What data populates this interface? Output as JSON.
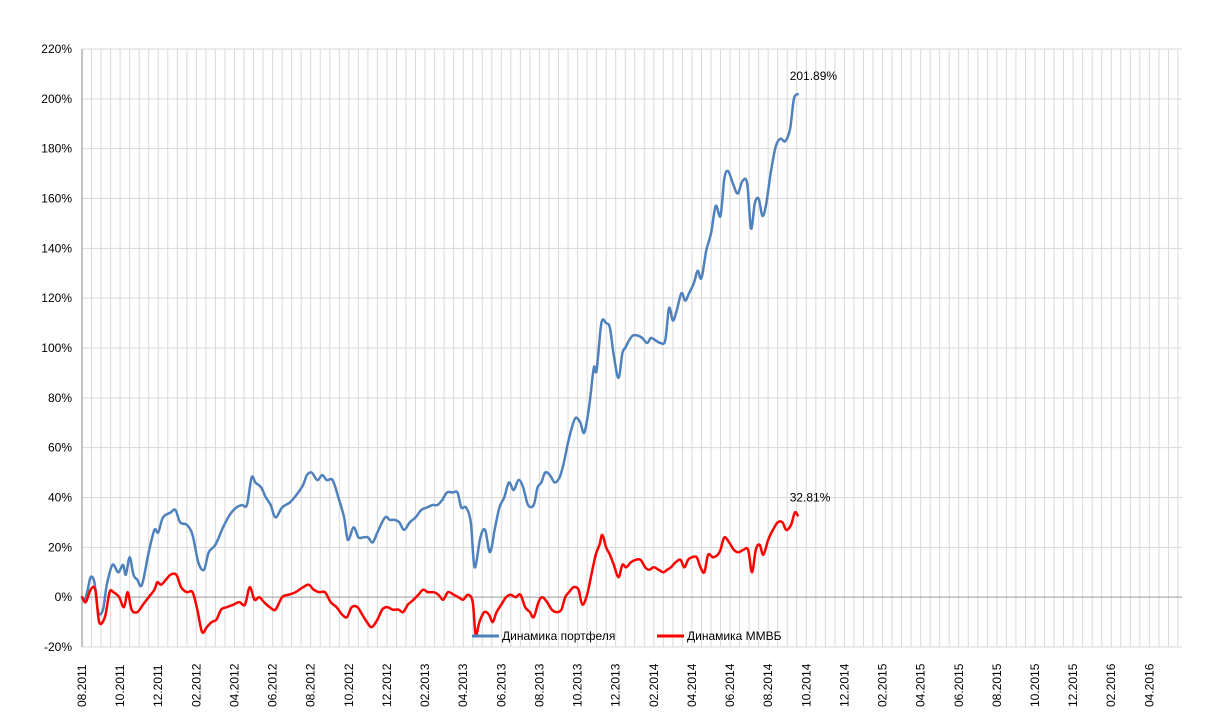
{
  "chart_data": {
    "type": "line",
    "ylim": [
      -20,
      220
    ],
    "yticks": [
      "-20%",
      "0%",
      "20%",
      "40%",
      "60%",
      "80%",
      "100%",
      "120%",
      "140%",
      "160%",
      "180%",
      "200%",
      "220%"
    ],
    "ytick_values": [
      -20,
      0,
      20,
      40,
      60,
      80,
      100,
      120,
      140,
      160,
      180,
      200,
      220
    ],
    "xticks": [
      "08.2011",
      "10.2011",
      "12.2011",
      "02.2012",
      "04.2012",
      "06.2012",
      "08.2012",
      "10.2012",
      "12.2012",
      "02.2013",
      "04.2013",
      "06.2013",
      "08.2013",
      "10.2013",
      "12.2013",
      "02.2014",
      "04.2014",
      "06.2014",
      "08.2014",
      "10.2014",
      "12.2014",
      "02.2015",
      "04.2015",
      "06.2015",
      "08.2015",
      "10.2015",
      "12.2015",
      "02.2016",
      "04.2016"
    ],
    "grid": true,
    "legend_position": "bottom",
    "series": [
      {
        "name": "Динамика портфеля",
        "color": "#4F81BD",
        "end_label": "201.89%",
        "points": [
          [
            0,
            0
          ],
          [
            0.3,
            -1
          ],
          [
            0.6,
            3
          ],
          [
            0.9,
            8
          ],
          [
            1.3,
            6
          ],
          [
            1.7,
            -6
          ],
          [
            2.2,
            -5
          ],
          [
            2.6,
            5
          ],
          [
            3.2,
            13
          ],
          [
            3.8,
            10
          ],
          [
            4.3,
            13
          ],
          [
            4.6,
            9
          ],
          [
            5.0,
            16
          ],
          [
            5.4,
            9
          ],
          [
            5.8,
            7
          ],
          [
            6.3,
            5
          ],
          [
            7.0,
            18
          ],
          [
            7.6,
            27
          ],
          [
            8.0,
            26
          ],
          [
            8.5,
            32
          ],
          [
            9.3,
            34
          ],
          [
            9.8,
            35
          ],
          [
            10.3,
            30
          ],
          [
            11.0,
            29
          ],
          [
            11.6,
            25
          ],
          [
            12.2,
            14
          ],
          [
            12.8,
            11
          ],
          [
            13.3,
            18
          ],
          [
            14.0,
            21
          ],
          [
            14.8,
            28
          ],
          [
            15.5,
            33
          ],
          [
            16.2,
            36
          ],
          [
            16.8,
            37
          ],
          [
            17.3,
            37
          ],
          [
            17.8,
            48
          ],
          [
            18.2,
            46
          ],
          [
            18.8,
            44
          ],
          [
            19.3,
            40
          ],
          [
            19.8,
            37
          ],
          [
            20.3,
            32
          ],
          [
            21.0,
            36
          ],
          [
            21.8,
            38
          ],
          [
            22.5,
            41
          ],
          [
            23.2,
            45
          ],
          [
            23.6,
            49
          ],
          [
            24.1,
            50
          ],
          [
            24.7,
            47
          ],
          [
            25.2,
            49
          ],
          [
            25.7,
            47
          ],
          [
            26.3,
            47
          ],
          [
            26.9,
            40
          ],
          [
            27.5,
            32
          ],
          [
            27.9,
            23
          ],
          [
            28.5,
            28
          ],
          [
            29.0,
            24
          ],
          [
            29.5,
            24
          ],
          [
            30.0,
            24
          ],
          [
            30.5,
            22
          ],
          [
            31.0,
            26
          ],
          [
            31.8,
            32
          ],
          [
            32.3,
            31
          ],
          [
            32.8,
            31
          ],
          [
            33.3,
            30
          ],
          [
            33.8,
            27
          ],
          [
            34.4,
            30
          ],
          [
            35.0,
            32
          ],
          [
            35.6,
            35
          ],
          [
            36.2,
            36
          ],
          [
            36.8,
            37
          ],
          [
            37.3,
            37
          ],
          [
            37.8,
            39
          ],
          [
            38.3,
            42
          ],
          [
            38.9,
            42
          ],
          [
            39.4,
            42
          ],
          [
            39.8,
            36
          ],
          [
            40.3,
            36
          ],
          [
            40.8,
            30
          ],
          [
            41.2,
            12
          ],
          [
            41.8,
            24
          ],
          [
            42.3,
            27
          ],
          [
            42.8,
            18
          ],
          [
            43.3,
            27
          ],
          [
            43.8,
            36
          ],
          [
            44.3,
            40
          ],
          [
            44.8,
            46
          ],
          [
            45.3,
            43
          ],
          [
            45.8,
            47
          ],
          [
            46.3,
            44
          ],
          [
            46.8,
            37
          ],
          [
            47.4,
            37
          ],
          [
            47.8,
            44
          ],
          [
            48.2,
            46
          ],
          [
            48.6,
            50
          ],
          [
            49.1,
            49
          ],
          [
            49.6,
            46
          ],
          [
            50.1,
            48
          ],
          [
            50.5,
            53
          ],
          [
            51.0,
            62
          ],
          [
            51.4,
            68
          ],
          [
            51.8,
            72
          ],
          [
            52.3,
            70
          ],
          [
            52.7,
            66
          ],
          [
            53.2,
            76
          ],
          [
            53.7,
            92
          ],
          [
            54.0,
            91
          ],
          [
            54.5,
            110
          ],
          [
            55.0,
            110
          ],
          [
            55.4,
            108
          ],
          [
            55.8,
            97
          ],
          [
            56.3,
            88
          ],
          [
            56.7,
            98
          ],
          [
            57.0,
            100
          ],
          [
            57.4,
            103
          ],
          [
            57.8,
            105
          ],
          [
            58.3,
            105
          ],
          [
            58.8,
            104
          ],
          [
            59.3,
            102
          ],
          [
            59.7,
            104
          ],
          [
            60.2,
            103
          ],
          [
            60.7,
            102
          ],
          [
            61.2,
            103
          ],
          [
            61.6,
            116
          ],
          [
            62.0,
            111
          ],
          [
            62.4,
            115
          ],
          [
            62.9,
            122
          ],
          [
            63.3,
            119
          ],
          [
            63.7,
            122
          ],
          [
            64.2,
            126
          ],
          [
            64.6,
            131
          ],
          [
            65.0,
            128
          ],
          [
            65.5,
            139
          ],
          [
            66.0,
            146
          ],
          [
            66.5,
            157
          ],
          [
            67.0,
            153
          ],
          [
            67.4,
            168
          ],
          [
            67.8,
            171
          ],
          [
            68.3,
            166
          ],
          [
            68.8,
            162
          ],
          [
            69.3,
            167
          ],
          [
            69.8,
            166
          ],
          [
            70.2,
            148
          ],
          [
            70.6,
            158
          ],
          [
            71.0,
            160
          ],
          [
            71.4,
            153
          ],
          [
            71.8,
            158
          ],
          [
            72.3,
            171
          ],
          [
            72.8,
            181
          ],
          [
            73.3,
            184
          ],
          [
            73.8,
            183
          ],
          [
            74.3,
            188
          ],
          [
            74.7,
            200
          ],
          [
            75.1,
            201.89
          ]
        ]
      },
      {
        "name": "Динамика ММВБ",
        "color": "#FF0000",
        "end_label": "32.81%",
        "points": [
          [
            0,
            0
          ],
          [
            0.4,
            -2
          ],
          [
            0.9,
            3
          ],
          [
            1.4,
            3
          ],
          [
            1.8,
            -10
          ],
          [
            2.4,
            -8
          ],
          [
            2.9,
            2
          ],
          [
            3.3,
            2
          ],
          [
            3.9,
            0
          ],
          [
            4.4,
            -4
          ],
          [
            4.8,
            2
          ],
          [
            5.2,
            -5
          ],
          [
            5.8,
            -6
          ],
          [
            6.4,
            -3
          ],
          [
            7.0,
            0
          ],
          [
            7.6,
            3
          ],
          [
            7.9,
            6
          ],
          [
            8.3,
            5
          ],
          [
            8.8,
            7
          ],
          [
            9.3,
            9
          ],
          [
            9.9,
            9
          ],
          [
            10.4,
            4
          ],
          [
            11.0,
            2
          ],
          [
            11.6,
            2
          ],
          [
            12.1,
            -5
          ],
          [
            12.6,
            -14
          ],
          [
            13.1,
            -12
          ],
          [
            13.6,
            -10
          ],
          [
            14.1,
            -9
          ],
          [
            14.6,
            -5
          ],
          [
            15.2,
            -4
          ],
          [
            15.9,
            -3
          ],
          [
            16.5,
            -2
          ],
          [
            17.1,
            -3
          ],
          [
            17.6,
            4
          ],
          [
            18.1,
            -1
          ],
          [
            18.6,
            0
          ],
          [
            19.1,
            -2
          ],
          [
            19.7,
            -4
          ],
          [
            20.3,
            -5
          ],
          [
            21.0,
            0
          ],
          [
            21.7,
            1
          ],
          [
            22.4,
            2
          ],
          [
            23.2,
            4
          ],
          [
            23.8,
            5
          ],
          [
            24.3,
            3
          ],
          [
            24.9,
            2
          ],
          [
            25.5,
            2
          ],
          [
            26.1,
            -2
          ],
          [
            26.7,
            -4
          ],
          [
            27.3,
            -7
          ],
          [
            27.8,
            -8
          ],
          [
            28.3,
            -4
          ],
          [
            28.9,
            -4
          ],
          [
            29.4,
            -7
          ],
          [
            29.9,
            -10
          ],
          [
            30.4,
            -12
          ],
          [
            31.0,
            -9
          ],
          [
            31.5,
            -5
          ],
          [
            32.0,
            -4
          ],
          [
            32.6,
            -5
          ],
          [
            33.2,
            -5
          ],
          [
            33.7,
            -6
          ],
          [
            34.2,
            -3
          ],
          [
            34.8,
            -1
          ],
          [
            35.3,
            1
          ],
          [
            35.8,
            3
          ],
          [
            36.3,
            2
          ],
          [
            36.9,
            2
          ],
          [
            37.4,
            1
          ],
          [
            37.9,
            -1
          ],
          [
            38.4,
            2
          ],
          [
            39.0,
            1
          ],
          [
            39.5,
            0
          ],
          [
            40.0,
            -1
          ],
          [
            40.5,
            1
          ],
          [
            41.0,
            -2
          ],
          [
            41.3,
            -15
          ],
          [
            41.7,
            -10
          ],
          [
            42.2,
            -6
          ],
          [
            42.7,
            -7
          ],
          [
            43.1,
            -10
          ],
          [
            43.5,
            -6
          ],
          [
            44.0,
            -3
          ],
          [
            44.5,
            0
          ],
          [
            45.0,
            1
          ],
          [
            45.5,
            0
          ],
          [
            46.0,
            1
          ],
          [
            46.5,
            -4
          ],
          [
            47.0,
            -6
          ],
          [
            47.4,
            -8
          ],
          [
            47.9,
            -2
          ],
          [
            48.3,
            0
          ],
          [
            48.8,
            -2
          ],
          [
            49.3,
            -5
          ],
          [
            49.8,
            -6
          ],
          [
            50.3,
            -5
          ],
          [
            50.7,
            0
          ],
          [
            51.1,
            2
          ],
          [
            51.6,
            4
          ],
          [
            52.1,
            3
          ],
          [
            52.5,
            -3
          ],
          [
            53.0,
            1
          ],
          [
            53.5,
            10
          ],
          [
            53.9,
            17
          ],
          [
            54.3,
            21
          ],
          [
            54.6,
            25
          ],
          [
            55.0,
            20
          ],
          [
            55.4,
            17
          ],
          [
            55.8,
            13
          ],
          [
            56.3,
            8
          ],
          [
            56.7,
            13
          ],
          [
            57.1,
            12
          ],
          [
            57.6,
            14
          ],
          [
            58.1,
            15
          ],
          [
            58.6,
            15
          ],
          [
            59.1,
            12
          ],
          [
            59.5,
            11
          ],
          [
            60.0,
            12
          ],
          [
            60.5,
            11
          ],
          [
            61.0,
            10
          ],
          [
            61.4,
            11
          ],
          [
            61.8,
            12
          ],
          [
            62.3,
            14
          ],
          [
            62.8,
            15
          ],
          [
            63.2,
            12
          ],
          [
            63.6,
            15
          ],
          [
            64.0,
            16
          ],
          [
            64.5,
            16
          ],
          [
            64.9,
            12
          ],
          [
            65.3,
            10
          ],
          [
            65.7,
            17
          ],
          [
            66.2,
            16
          ],
          [
            66.7,
            17
          ],
          [
            67.0,
            19
          ],
          [
            67.4,
            24
          ],
          [
            67.9,
            22
          ],
          [
            68.4,
            19
          ],
          [
            68.9,
            18
          ],
          [
            69.4,
            19
          ],
          [
            69.9,
            19
          ],
          [
            70.3,
            10
          ],
          [
            70.7,
            19
          ],
          [
            71.1,
            21
          ],
          [
            71.5,
            17
          ],
          [
            72.0,
            23
          ],
          [
            72.5,
            27
          ],
          [
            73.0,
            30
          ],
          [
            73.5,
            30
          ],
          [
            73.9,
            27
          ],
          [
            74.4,
            29
          ],
          [
            74.8,
            34
          ],
          [
            75.1,
            32.81
          ]
        ]
      }
    ]
  }
}
